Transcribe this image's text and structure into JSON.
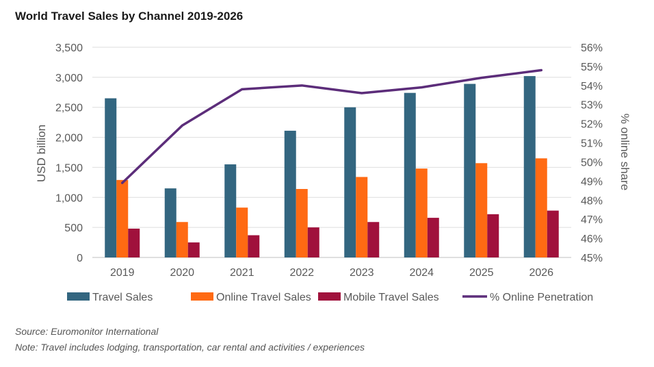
{
  "chart_data": {
    "type": "bar",
    "title": "World Travel Sales by Channel 2019-2026",
    "categories": [
      "2019",
      "2020",
      "2021",
      "2022",
      "2023",
      "2024",
      "2025",
      "2026"
    ],
    "series": [
      {
        "name": "Travel Sales",
        "axis": "left",
        "color": "#336680",
        "values": [
          2650,
          1150,
          1550,
          2110,
          2500,
          2740,
          2890,
          3020
        ]
      },
      {
        "name": "Online Travel Sales",
        "axis": "left",
        "color": "#ff6a13",
        "values": [
          1290,
          590,
          830,
          1140,
          1340,
          1480,
          1570,
          1650
        ]
      },
      {
        "name": "Mobile Travel Sales",
        "axis": "left",
        "color": "#a0113c",
        "values": [
          480,
          250,
          370,
          500,
          590,
          660,
          720,
          780
        ]
      },
      {
        "name": "% Online Penetration",
        "type": "line",
        "axis": "right",
        "color": "#5c2d7a",
        "values": [
          48.9,
          51.9,
          53.8,
          54.0,
          53.6,
          53.9,
          54.4,
          54.8
        ]
      }
    ],
    "ylabel": "USD billion",
    "ylim": [
      0,
      3500
    ],
    "yticks": [
      "0",
      "500",
      "1,000",
      "1,500",
      "2,000",
      "2,500",
      "3,000",
      "3,500"
    ],
    "y2label": "% online share",
    "y2lim": [
      45,
      56
    ],
    "y2ticks": [
      "45%",
      "46%",
      "47%",
      "48%",
      "49%",
      "50%",
      "51%",
      "52%",
      "53%",
      "54%",
      "55%",
      "56%"
    ],
    "grid": true,
    "legend_position": "bottom"
  },
  "source": "Source: Euromonitor International",
  "note": "Note: Travel includes lodging, transportation, car rental and activities / experiences"
}
